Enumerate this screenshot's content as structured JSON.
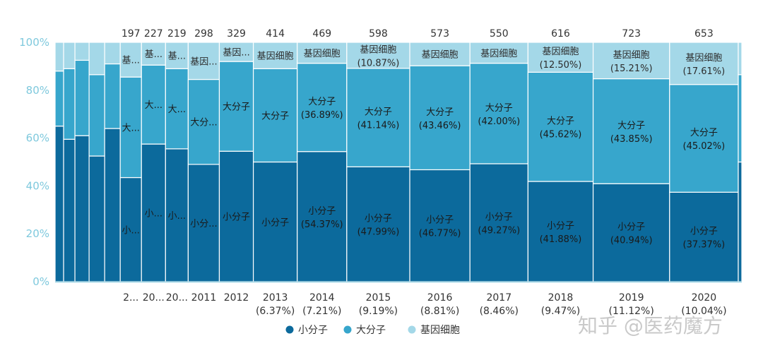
{
  "chart_data": {
    "type": "bar",
    "subtype": "marimekko-100pct-stacked",
    "ylim": [
      0,
      100
    ],
    "yticks": [
      "0%",
      "20%",
      "40%",
      "60%",
      "80%",
      "100%"
    ],
    "colors": {
      "小分子": "#0c6a9c",
      "大分子": "#37a6cc",
      "基因细胞": "#a4d8e8",
      "axis": "#9ad3e3"
    },
    "legend": [
      "小分子",
      "大分子",
      "基因细胞"
    ],
    "series_order": [
      "小分子",
      "大分子",
      "基因细胞"
    ],
    "columns": [
      {
        "total": "",
        "year": "",
        "share": "",
        "weight": 0.6,
        "values": [
          65,
          23,
          12
        ],
        "labels": [
          "",
          "",
          ""
        ]
      },
      {
        "total": "",
        "year": "",
        "share": "",
        "weight": 0.8,
        "values": [
          59.5,
          29.5,
          11
        ],
        "labels": [
          "",
          "",
          ""
        ]
      },
      {
        "total": "",
        "year": "",
        "share": "",
        "weight": 1.0,
        "values": [
          61,
          31.5,
          7.5
        ],
        "labels": [
          "",
          "",
          ""
        ]
      },
      {
        "total": "",
        "year": "",
        "share": "",
        "weight": 1.1,
        "values": [
          52.5,
          34,
          13.5
        ],
        "labels": [
          "",
          "",
          ""
        ]
      },
      {
        "total": "",
        "year": "",
        "share": "",
        "weight": 1.1,
        "values": [
          64,
          27,
          9
        ],
        "labels": [
          "",
          "",
          ""
        ]
      },
      {
        "total": "197",
        "year": "2...",
        "share": "",
        "weight": 1.5,
        "values": [
          43.5,
          42,
          14.5
        ],
        "labels": [
          "小...",
          "大...",
          "基..."
        ]
      },
      {
        "total": "227",
        "year": "20...",
        "share": "",
        "weight": 1.7,
        "values": [
          57.5,
          33,
          9.5
        ],
        "labels": [
          "小...",
          "大...",
          "基..."
        ]
      },
      {
        "total": "219",
        "year": "20...",
        "share": "",
        "weight": 1.6,
        "values": [
          55.5,
          33.5,
          11
        ],
        "labels": [
          "小...",
          "大...",
          "基..."
        ]
      },
      {
        "total": "298",
        "year": "2011",
        "share": "",
        "weight": 2.2,
        "values": [
          49,
          35.5,
          15.5
        ],
        "labels": [
          "小分...",
          "大分...",
          "基因..."
        ]
      },
      {
        "total": "329",
        "year": "2012",
        "share": "",
        "weight": 2.4,
        "values": [
          54.5,
          37.5,
          8
        ],
        "labels": [
          "小分子",
          "大分子",
          "基因..."
        ]
      },
      {
        "total": "414",
        "year": "2013",
        "share": "(6.37%)",
        "weight": 3.1,
        "values": [
          50,
          39,
          11
        ],
        "labels": [
          "小分子",
          "大分子",
          "基因细胞"
        ]
      },
      {
        "total": "469",
        "year": "2014",
        "share": "(7.21%)",
        "weight": 3.5,
        "values": [
          54.37,
          36.89,
          8.74
        ],
        "labels": [
          "小分子\n(54.37%)",
          "大分子\n(36.89%)",
          "基因细胞"
        ]
      },
      {
        "total": "598",
        "year": "2015",
        "share": "(9.19%)",
        "weight": 4.45,
        "values": [
          47.99,
          41.14,
          10.87
        ],
        "labels": [
          "小分子\n(47.99%)",
          "大分子\n(41.14%)",
          "基因细胞\n(10.87%)"
        ]
      },
      {
        "total": "573",
        "year": "2016",
        "share": "(8.81%)",
        "weight": 4.25,
        "values": [
          46.77,
          43.46,
          9.77
        ],
        "labels": [
          "小分子\n(46.77%)",
          "大分子\n(43.46%)",
          "基因细胞"
        ]
      },
      {
        "total": "550",
        "year": "2017",
        "share": "(8.46%)",
        "weight": 4.1,
        "values": [
          49.27,
          42.0,
          8.73
        ],
        "labels": [
          "小分子\n(49.27%)",
          "大分子\n(42.00%)",
          "基因细胞"
        ]
      },
      {
        "total": "616",
        "year": "2018",
        "share": "(9.47%)",
        "weight": 4.6,
        "values": [
          41.88,
          45.62,
          12.5
        ],
        "labels": [
          "小分子\n(41.88%)",
          "大分子\n(45.62%)",
          "基因细胞\n(12.50%)"
        ]
      },
      {
        "total": "723",
        "year": "2019",
        "share": "(11.12%)",
        "weight": 5.4,
        "values": [
          40.94,
          43.85,
          15.21
        ],
        "labels": [
          "小分子\n(40.94%)",
          "大分子\n(43.85%)",
          "基因细胞\n(15.21%)"
        ]
      },
      {
        "total": "653",
        "year": "2020",
        "share": "(10.04%)",
        "weight": 4.85,
        "values": [
          37.37,
          45.02,
          17.61
        ],
        "labels": [
          "小分子\n(37.37%)",
          "大分子\n(45.02%)",
          "基因细胞\n(17.61%)"
        ]
      },
      {
        "total": "",
        "year": "",
        "share": "",
        "weight": 0.25,
        "values": [
          50,
          36.5,
          13.5
        ],
        "labels": [
          "",
          "",
          ""
        ]
      }
    ]
  },
  "watermark": "知乎 @医药魔方"
}
